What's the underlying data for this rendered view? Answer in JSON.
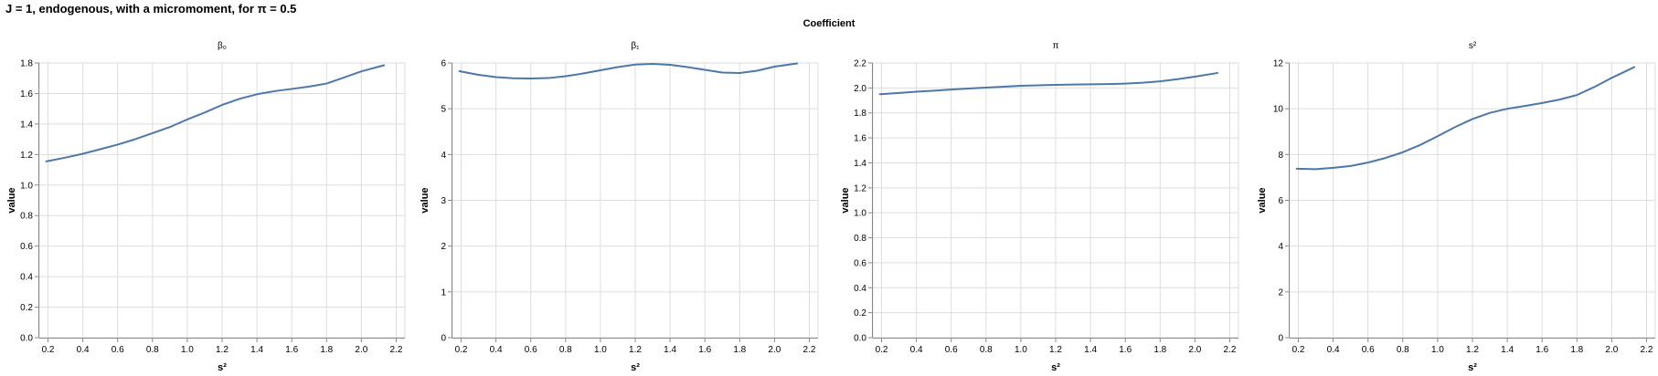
{
  "title": "J = 1, endogenous, with a micromoment,  for π = 0.5",
  "facet_header": "Coefficient",
  "colors": {
    "line": "#4c78a8",
    "grid": "#dddddd",
    "axis": "#888888",
    "text": "#000000"
  },
  "chart_data": [
    {
      "type": "line",
      "title": "β₀",
      "xlabel": "s²",
      "ylabel": "value",
      "xlim": [
        0.15,
        2.25
      ],
      "xticks": [
        0.2,
        0.4,
        0.6,
        0.8,
        1.0,
        1.2,
        1.4,
        1.6,
        1.8,
        2.0,
        2.2
      ],
      "xtick_labels": [
        "0.2",
        "0.4",
        "0.6",
        "0.8",
        "1.0",
        "1.2",
        "1.4",
        "1.6",
        "1.8",
        "2.0",
        "2.2"
      ],
      "ylim": [
        0,
        1.8
      ],
      "yticks": [
        0,
        0.2,
        0.4,
        0.6,
        0.8,
        1.0,
        1.2,
        1.4,
        1.6,
        1.8
      ],
      "ytick_labels": [
        "0.0",
        "0.2",
        "0.4",
        "0.6",
        "0.8",
        "1.0",
        "1.2",
        "1.4",
        "1.6",
        "1.8"
      ],
      "x": [
        0.19,
        0.3,
        0.4,
        0.5,
        0.6,
        0.7,
        0.8,
        0.9,
        1.0,
        1.1,
        1.2,
        1.3,
        1.4,
        1.5,
        1.6,
        1.7,
        1.8,
        1.9,
        2.0,
        2.13
      ],
      "values": [
        1.155,
        1.18,
        1.205,
        1.235,
        1.265,
        1.3,
        1.34,
        1.38,
        1.43,
        1.475,
        1.525,
        1.565,
        1.595,
        1.615,
        1.63,
        1.645,
        1.665,
        1.705,
        1.745,
        1.785
      ]
    },
    {
      "type": "line",
      "title": "β₁",
      "xlabel": "s²",
      "ylabel": "value",
      "xlim": [
        0.15,
        2.25
      ],
      "xticks": [
        0.2,
        0.4,
        0.6,
        0.8,
        1.0,
        1.2,
        1.4,
        1.6,
        1.8,
        2.0,
        2.2
      ],
      "xtick_labels": [
        "0.2",
        "0.4",
        "0.6",
        "0.8",
        "1.0",
        "1.2",
        "1.4",
        "1.6",
        "1.8",
        "2.0",
        "2.2"
      ],
      "ylim": [
        0,
        6
      ],
      "yticks": [
        0,
        1,
        2,
        3,
        4,
        5,
        6
      ],
      "ytick_labels": [
        "0",
        "1",
        "2",
        "3",
        "4",
        "5",
        "6"
      ],
      "x": [
        0.19,
        0.3,
        0.4,
        0.5,
        0.6,
        0.7,
        0.8,
        0.9,
        1.0,
        1.1,
        1.2,
        1.3,
        1.4,
        1.5,
        1.6,
        1.7,
        1.8,
        1.9,
        2.0,
        2.13
      ],
      "values": [
        5.82,
        5.74,
        5.69,
        5.665,
        5.66,
        5.67,
        5.71,
        5.77,
        5.84,
        5.91,
        5.965,
        5.98,
        5.96,
        5.91,
        5.85,
        5.79,
        5.78,
        5.83,
        5.92,
        5.99
      ]
    },
    {
      "type": "line",
      "title": "π",
      "xlabel": "s²",
      "ylabel": "value",
      "xlim": [
        0.15,
        2.25
      ],
      "xticks": [
        0.2,
        0.4,
        0.6,
        0.8,
        1.0,
        1.2,
        1.4,
        1.6,
        1.8,
        2.0,
        2.2
      ],
      "xtick_labels": [
        "0.2",
        "0.4",
        "0.6",
        "0.8",
        "1.0",
        "1.2",
        "1.4",
        "1.6",
        "1.8",
        "2.0",
        "2.2"
      ],
      "ylim": [
        0,
        2.2
      ],
      "yticks": [
        0,
        0.2,
        0.4,
        0.6,
        0.8,
        1.0,
        1.2,
        1.4,
        1.6,
        1.8,
        2.0,
        2.2
      ],
      "ytick_labels": [
        "0.0",
        "0.2",
        "0.4",
        "0.6",
        "0.8",
        "1.0",
        "1.2",
        "1.4",
        "1.6",
        "1.8",
        "2.0",
        "2.2"
      ],
      "x": [
        0.19,
        0.3,
        0.4,
        0.5,
        0.6,
        0.7,
        0.8,
        0.9,
        1.0,
        1.1,
        1.2,
        1.3,
        1.4,
        1.5,
        1.6,
        1.7,
        1.8,
        1.9,
        2.0,
        2.13
      ],
      "values": [
        1.95,
        1.96,
        1.97,
        1.978,
        1.987,
        1.995,
        2.003,
        2.01,
        2.017,
        2.021,
        2.025,
        2.027,
        2.029,
        2.031,
        2.035,
        2.042,
        2.053,
        2.07,
        2.09,
        2.12
      ]
    },
    {
      "type": "line",
      "title": "s²",
      "xlabel": "s²",
      "ylabel": "value",
      "xlim": [
        0.15,
        2.25
      ],
      "xticks": [
        0.2,
        0.4,
        0.6,
        0.8,
        1.0,
        1.2,
        1.4,
        1.6,
        1.8,
        2.0,
        2.2
      ],
      "xtick_labels": [
        "0.2",
        "0.4",
        "0.6",
        "0.8",
        "1.0",
        "1.2",
        "1.4",
        "1.6",
        "1.8",
        "2.0",
        "2.2"
      ],
      "ylim": [
        0,
        12
      ],
      "yticks": [
        0,
        2,
        4,
        6,
        8,
        10,
        12
      ],
      "ytick_labels": [
        "0",
        "2",
        "4",
        "6",
        "8",
        "10",
        "12"
      ],
      "x": [
        0.19,
        0.3,
        0.4,
        0.5,
        0.6,
        0.7,
        0.8,
        0.9,
        1.0,
        1.1,
        1.2,
        1.3,
        1.4,
        1.5,
        1.6,
        1.7,
        1.8,
        1.9,
        2.0,
        2.13
      ],
      "values": [
        7.38,
        7.36,
        7.42,
        7.5,
        7.65,
        7.85,
        8.1,
        8.42,
        8.8,
        9.2,
        9.55,
        9.82,
        10.0,
        10.12,
        10.25,
        10.4,
        10.6,
        10.95,
        11.35,
        11.82
      ]
    }
  ]
}
